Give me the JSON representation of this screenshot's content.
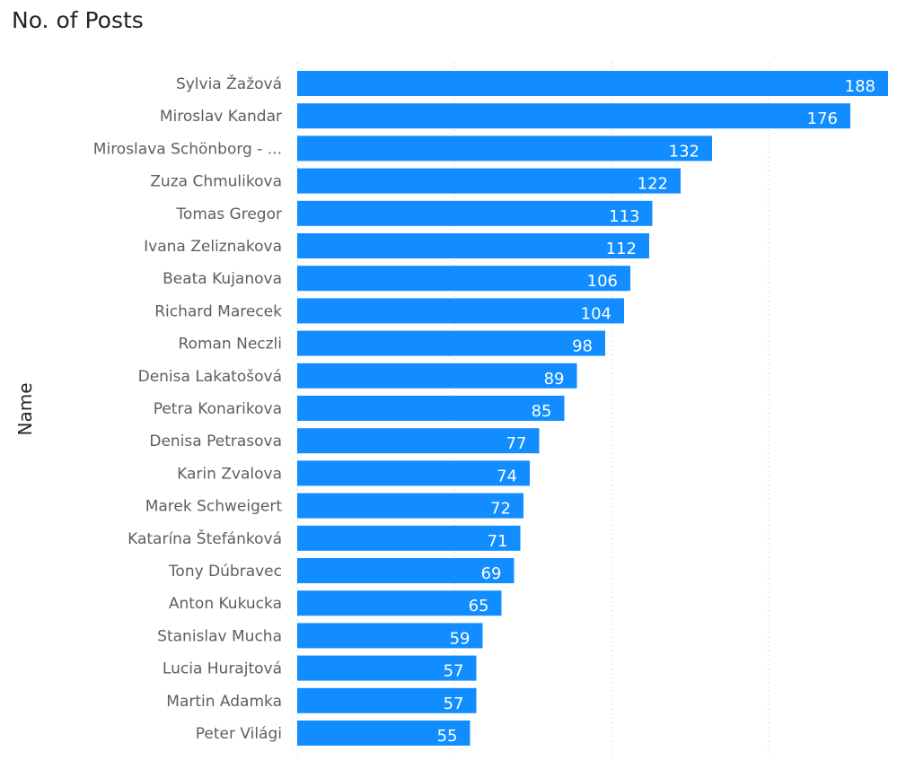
{
  "chart_data": {
    "type": "bar",
    "orientation": "horizontal",
    "title": "No. of Posts",
    "ylabel": "Name",
    "xlabel": "",
    "bar_color": "#118DFF",
    "grid": true,
    "xlim": [
      0,
      188
    ],
    "gridline_values": [
      0,
      50,
      100,
      150
    ],
    "categories": [
      "Sylvia Žažová",
      "Miroslav Kandar",
      "Miroslava Schönborg - ...",
      "Zuza Chmulikova",
      "Tomas Gregor",
      "Ivana Zeliznakova",
      "Beata Kujanova",
      "Richard Marecek",
      "Roman Neczli",
      "Denisa Lakatošová",
      "Petra Konarikova",
      "Denisa Petrasova",
      "Karin Zvalova",
      "Marek Schweigert",
      "Katarína Štefánková",
      "Tony Dúbravec",
      "Anton Kukucka",
      "Stanislav Mucha",
      "Lucia Hurajtová",
      "Martin Adamka",
      "Peter Világi"
    ],
    "values": [
      188,
      176,
      132,
      122,
      113,
      112,
      106,
      104,
      98,
      89,
      85,
      77,
      74,
      72,
      71,
      69,
      65,
      59,
      57,
      57,
      55
    ]
  }
}
